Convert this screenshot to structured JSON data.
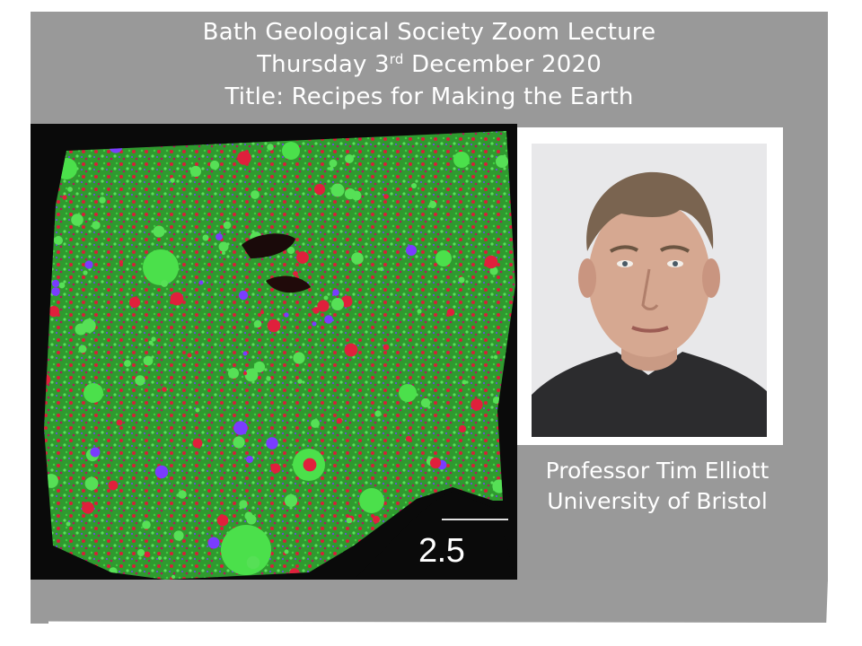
{
  "header": {
    "line1": "Bath Geological Society Zoom Lecture",
    "line2_prefix": "Thursday 3",
    "line2_sup": "rd",
    "line2_suffix": " December 2020",
    "line3": "Title: Recipes for Making the Earth"
  },
  "figure": {
    "scale_bar_label": "2.5 mm"
  },
  "speaker": {
    "name": "Professor Tim Elliott",
    "affiliation": "University of Bristol"
  },
  "colors": {
    "panel_grey": "#999999",
    "text": "#ffffff",
    "chondrule_green": "#33cc33",
    "matrix_red": "#d81e3a",
    "mineral_purple": "#7a3cff"
  }
}
